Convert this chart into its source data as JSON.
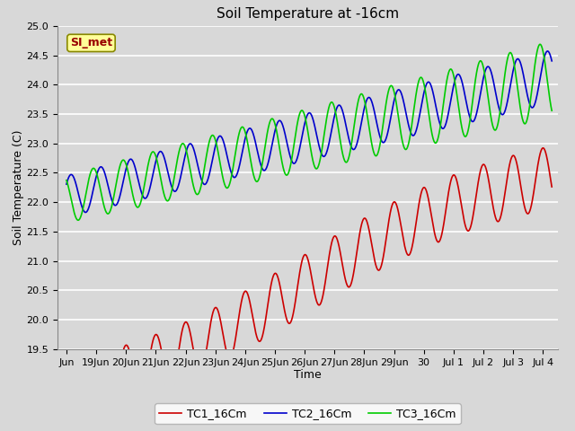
{
  "title": "Soil Temperature at -16cm",
  "xlabel": "Time",
  "ylabel": "Soil Temperature (C)",
  "ylim": [
    19.5,
    25.0
  ],
  "yticks": [
    19.5,
    20.0,
    20.5,
    21.0,
    21.5,
    22.0,
    22.5,
    23.0,
    23.5,
    24.0,
    24.5,
    25.0
  ],
  "bg_color": "#d8d8d8",
  "plot_bg_color": "#d8d8d8",
  "grid_color": "#ffffff",
  "tc1_color": "#cc0000",
  "tc2_color": "#0000cc",
  "tc3_color": "#00cc00",
  "legend_label1": "TC1_16Cm",
  "legend_label2": "TC2_16Cm",
  "legend_label3": "TC3_16Cm",
  "watermark_text": "SI_met",
  "watermark_bg": "#ffff99",
  "watermark_fg": "#990000",
  "watermark_edge": "#888800",
  "tick_label_fontsize": 8,
  "axis_label_fontsize": 9,
  "title_fontsize": 11,
  "legend_fontsize": 9
}
